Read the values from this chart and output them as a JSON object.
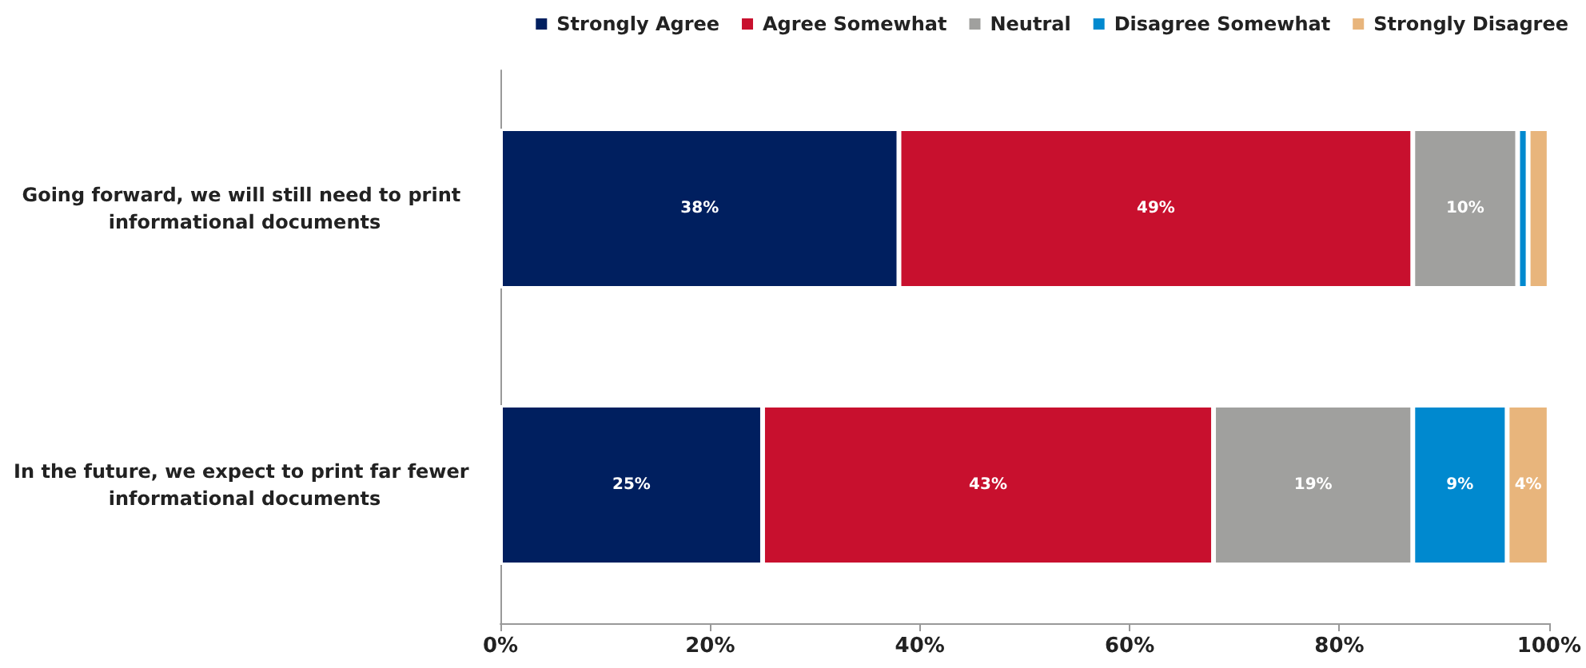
{
  "chart_data": {
    "type": "bar",
    "orientation": "horizontal",
    "stacked": true,
    "categories": [
      "Going forward, we will still need to print informational documents",
      "In the future, we expect to print far fewer informational documents"
    ],
    "series": [
      {
        "name": "Strongly Agree",
        "color": "#001f5f",
        "values": [
          38,
          25
        ],
        "value_labels": [
          "38%",
          "25%"
        ]
      },
      {
        "name": "Agree Somewhat",
        "color": "#c8102e",
        "values": [
          49,
          43
        ],
        "value_labels": [
          "49%",
          "43%"
        ]
      },
      {
        "name": "Neutral",
        "color": "#a0a09e",
        "values": [
          10,
          19
        ],
        "value_labels": [
          "10%",
          "19%"
        ]
      },
      {
        "name": "Disagree Somewhat",
        "color": "#0089cf",
        "values": [
          1,
          9
        ],
        "value_labels": [
          null,
          "9%"
        ]
      },
      {
        "name": "Strongly Disagree",
        "color": "#e8b57c",
        "values": [
          2,
          4
        ],
        "value_labels": [
          null,
          "4%"
        ]
      }
    ],
    "xlim": [
      0,
      100
    ],
    "xticks": [
      {
        "value": 0,
        "label": "0%"
      },
      {
        "value": 20,
        "label": "20%"
      },
      {
        "value": 40,
        "label": "40%"
      },
      {
        "value": 60,
        "label": "60%"
      },
      {
        "value": 80,
        "label": "80%"
      },
      {
        "value": 100,
        "label": "100%"
      }
    ],
    "grid": false,
    "legend": "top right"
  }
}
